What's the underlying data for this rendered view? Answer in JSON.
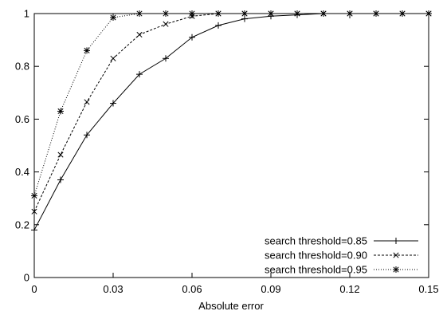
{
  "chart_data": {
    "type": "line",
    "title": "",
    "xlabel": "Absolute error",
    "ylabel": "",
    "xlim": [
      0,
      0.15
    ],
    "ylim": [
      0,
      1
    ],
    "x_ticks": [
      "0",
      "0.03",
      "0.06",
      "0.09",
      "0.12",
      "0.15"
    ],
    "y_ticks": [
      "0",
      "0.2",
      "0.4",
      "0.6",
      "0.8",
      "1"
    ],
    "grid": false,
    "legend_position": "bottom-right",
    "x": [
      0,
      0.01,
      0.02,
      0.03,
      0.04,
      0.05,
      0.06,
      0.07,
      0.08,
      0.09,
      0.1,
      0.11,
      0.12,
      0.13,
      0.14,
      0.15
    ],
    "series": [
      {
        "name": "search threshold=0.85",
        "marker": "plus",
        "line_style": "solid",
        "values": [
          0.18,
          0.37,
          0.54,
          0.66,
          0.77,
          0.83,
          0.91,
          0.955,
          0.98,
          0.99,
          0.995,
          1.0,
          1.0,
          1.0,
          1.0,
          1.0
        ]
      },
      {
        "name": "search threshold=0.90",
        "marker": "cross",
        "line_style": "dashed",
        "values": [
          0.25,
          0.465,
          0.665,
          0.83,
          0.92,
          0.96,
          0.99,
          1.0,
          1.0,
          1.0,
          1.0,
          1.0,
          1.0,
          1.0,
          1.0,
          1.0
        ]
      },
      {
        "name": "search threshold=0.95",
        "marker": "star",
        "line_style": "dotted",
        "values": [
          0.31,
          0.63,
          0.86,
          0.985,
          1.0,
          1.0,
          1.0,
          1.0,
          1.0,
          1.0,
          1.0,
          1.0,
          1.0,
          1.0,
          1.0,
          1.0
        ]
      }
    ]
  }
}
